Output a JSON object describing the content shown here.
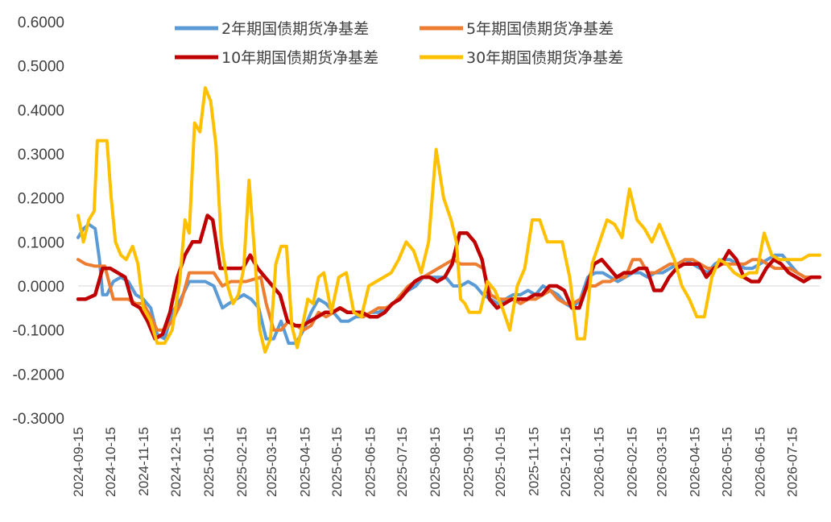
{
  "chart_data": {
    "type": "line",
    "title": "",
    "xlabel": "",
    "ylabel": "",
    "ylim": [
      -0.3,
      0.6
    ],
    "grid": false,
    "legend_position": "top",
    "y_ticks": [
      "0.6000",
      "0.5000",
      "0.4000",
      "0.3000",
      "0.2000",
      "0.1000",
      "0.0000",
      "-0.1000",
      "-0.2000",
      "-0.3000"
    ],
    "x_ticks": [
      "2024-09-15",
      "2024-10-15",
      "2024-11-15",
      "2024-12-15",
      "2025-01-15",
      "2025-02-15",
      "2025-03-15",
      "2025-04-15",
      "2025-05-15",
      "2025-06-15",
      "2025-07-15",
      "2025-08-15",
      "2025-09-15",
      "2025-10-15",
      "2025-11-15",
      "2025-12-15",
      "2026-01-15",
      "2026-02-15",
      "2026-03-15",
      "2026-04-15",
      "2026-05-15",
      "2026-06-15",
      "2026-07-15"
    ],
    "x_start": "2024-09-15",
    "x_end": "2026-08-10",
    "series": [
      {
        "name": "2年期国债期货净基差",
        "color": "#5B9BD5",
        "x": [
          "2024-09-15",
          "2024-09-20",
          "2024-09-25",
          "2024-10-01",
          "2024-10-05",
          "2024-10-08",
          "2024-10-12",
          "2024-10-18",
          "2024-10-25",
          "2024-11-01",
          "2024-11-08",
          "2024-11-15",
          "2024-11-22",
          "2024-11-28",
          "2024-12-05",
          "2024-12-12",
          "2024-12-20",
          "2024-12-28",
          "2025-01-05",
          "2025-01-12",
          "2025-01-20",
          "2025-01-28",
          "2025-02-03",
          "2025-02-10",
          "2025-02-17",
          "2025-02-24",
          "2025-03-03",
          "2025-03-10",
          "2025-03-17",
          "2025-03-24",
          "2025-03-31",
          "2025-04-07",
          "2025-04-14",
          "2025-04-21",
          "2025-04-28",
          "2025-05-05",
          "2025-05-12",
          "2025-05-19",
          "2025-05-26",
          "2025-06-02",
          "2025-06-09",
          "2025-06-16",
          "2025-06-23",
          "2025-06-30",
          "2025-07-07",
          "2025-07-14",
          "2025-07-21",
          "2025-07-28",
          "2025-08-04",
          "2025-08-11",
          "2025-08-18",
          "2025-08-25",
          "2025-09-01",
          "2025-09-08",
          "2025-09-15",
          "2025-09-22",
          "2025-09-29",
          "2025-10-06",
          "2025-10-13",
          "2025-10-20",
          "2025-10-27",
          "2025-11-03",
          "2025-11-10",
          "2025-11-17",
          "2025-11-24",
          "2025-12-01",
          "2025-12-08",
          "2025-12-15",
          "2025-12-22",
          "2025-12-29",
          "2026-01-05",
          "2026-01-12",
          "2026-01-19",
          "2026-01-26",
          "2026-02-02",
          "2026-02-09",
          "2026-02-16",
          "2026-02-23",
          "2026-03-02",
          "2026-03-09",
          "2026-03-16",
          "2026-03-23",
          "2026-03-30",
          "2026-04-06",
          "2026-04-13",
          "2026-04-20",
          "2026-04-27",
          "2026-05-04",
          "2026-05-11",
          "2026-05-18",
          "2026-05-25",
          "2026-06-01",
          "2026-06-08",
          "2026-06-15",
          "2026-06-22",
          "2026-06-29",
          "2026-07-06",
          "2026-07-13",
          "2026-07-20",
          "2026-07-27",
          "2026-08-03",
          "2026-08-10"
        ],
        "values": [
          0.11,
          0.13,
          0.14,
          0.13,
          0.06,
          -0.02,
          -0.02,
          0.01,
          0.02,
          0.01,
          -0.02,
          -0.03,
          -0.05,
          -0.11,
          -0.12,
          -0.06,
          -0.03,
          0.01,
          0.01,
          0.01,
          0.0,
          -0.05,
          -0.04,
          -0.03,
          -0.02,
          -0.03,
          -0.05,
          -0.12,
          -0.12,
          -0.08,
          -0.13,
          -0.13,
          -0.1,
          -0.06,
          -0.03,
          -0.04,
          -0.06,
          -0.08,
          -0.08,
          -0.07,
          -0.07,
          -0.06,
          -0.06,
          -0.05,
          -0.04,
          -0.02,
          -0.01,
          0.0,
          0.02,
          0.02,
          0.02,
          0.02,
          0.0,
          0.0,
          0.01,
          0.0,
          -0.02,
          -0.03,
          -0.04,
          -0.03,
          -0.02,
          -0.02,
          -0.01,
          -0.02,
          0.0,
          -0.01,
          -0.02,
          -0.04,
          -0.05,
          -0.03,
          0.02,
          0.03,
          0.03,
          0.02,
          0.01,
          0.02,
          0.03,
          0.03,
          0.02,
          0.03,
          0.03,
          0.04,
          0.05,
          0.06,
          0.05,
          0.04,
          0.03,
          0.05,
          0.06,
          0.06,
          0.05,
          0.04,
          0.04,
          0.05,
          0.06,
          0.07,
          0.07,
          0.05,
          0.03,
          0.02,
          0.02,
          0.02
        ]
      },
      {
        "name": "5年期国债期货净基差",
        "color": "#ED7D31",
        "x": [
          "2024-09-15",
          "2024-09-22",
          "2024-10-01",
          "2024-10-10",
          "2024-10-18",
          "2024-10-25",
          "2024-11-01",
          "2024-11-08",
          "2024-11-15",
          "2024-11-22",
          "2024-11-28",
          "2024-12-05",
          "2024-12-12",
          "2024-12-20",
          "2024-12-28",
          "2025-01-05",
          "2025-01-12",
          "2025-01-20",
          "2025-01-28",
          "2025-02-05",
          "2025-02-12",
          "2025-02-19",
          "2025-02-26",
          "2025-03-05",
          "2025-03-10",
          "2025-03-17",
          "2025-03-24",
          "2025-03-31",
          "2025-04-07",
          "2025-04-14",
          "2025-04-21",
          "2025-04-28",
          "2025-05-05",
          "2025-05-12",
          "2025-05-19",
          "2025-05-26",
          "2025-06-02",
          "2025-06-09",
          "2025-06-16",
          "2025-06-23",
          "2025-06-30",
          "2025-07-07",
          "2025-07-14",
          "2025-07-21",
          "2025-07-28",
          "2025-08-04",
          "2025-08-11",
          "2025-08-18",
          "2025-08-25",
          "2025-09-01",
          "2025-09-08",
          "2025-09-15",
          "2025-09-22",
          "2025-09-29",
          "2025-10-06",
          "2025-10-13",
          "2025-10-20",
          "2025-10-27",
          "2025-11-03",
          "2025-11-10",
          "2025-11-17",
          "2025-11-24",
          "2025-12-01",
          "2025-12-08",
          "2025-12-15",
          "2025-12-22",
          "2025-12-29",
          "2026-01-05",
          "2026-01-12",
          "2026-01-19",
          "2026-01-26",
          "2026-02-02",
          "2026-02-09",
          "2026-02-16",
          "2026-02-23",
          "2026-03-02",
          "2026-03-09",
          "2026-03-16",
          "2026-03-23",
          "2026-03-30",
          "2026-04-06",
          "2026-04-13",
          "2026-04-20",
          "2026-04-27",
          "2026-05-04",
          "2026-05-11",
          "2026-05-18",
          "2026-05-25",
          "2026-06-01",
          "2026-06-08",
          "2026-06-15",
          "2026-06-22",
          "2026-06-29",
          "2026-07-06",
          "2026-07-13",
          "2026-07-20",
          "2026-07-27",
          "2026-08-03",
          "2026-08-10"
        ],
        "values": [
          0.06,
          0.05,
          0.045,
          0.045,
          -0.03,
          -0.03,
          -0.03,
          -0.04,
          -0.04,
          -0.07,
          -0.1,
          -0.1,
          -0.08,
          -0.04,
          0.03,
          0.03,
          0.03,
          0.03,
          0.0,
          0.01,
          0.01,
          0.01,
          0.015,
          0.02,
          -0.04,
          -0.1,
          -0.1,
          -0.08,
          -0.09,
          -0.1,
          -0.09,
          -0.06,
          -0.07,
          -0.06,
          -0.05,
          -0.06,
          -0.06,
          -0.07,
          -0.06,
          -0.05,
          -0.05,
          -0.04,
          -0.02,
          0.0,
          0.01,
          0.02,
          0.03,
          0.04,
          0.05,
          0.06,
          0.05,
          0.05,
          0.05,
          0.04,
          -0.02,
          -0.03,
          -0.03,
          -0.03,
          -0.04,
          -0.03,
          -0.03,
          -0.02,
          -0.01,
          -0.03,
          -0.04,
          -0.04,
          -0.03,
          0.0,
          0.0,
          0.01,
          0.01,
          0.02,
          0.02,
          0.06,
          0.06,
          0.03,
          0.03,
          0.04,
          0.05,
          0.05,
          0.06,
          0.06,
          0.05,
          0.04,
          0.04,
          0.05,
          0.05,
          0.05,
          0.05,
          0.06,
          0.06,
          0.05,
          0.04,
          0.04,
          0.04,
          0.03,
          0.02,
          0.02,
          0.02
        ]
      },
      {
        "name": "10年期国债期货净基差",
        "color": "#C00000",
        "x": [
          "2024-09-15",
          "2024-09-22",
          "2024-10-01",
          "2024-10-08",
          "2024-10-15",
          "2024-10-22",
          "2024-10-29",
          "2024-11-05",
          "2024-11-12",
          "2024-11-19",
          "2024-11-26",
          "2024-12-03",
          "2024-12-10",
          "2024-12-17",
          "2024-12-24",
          "2024-12-31",
          "2025-01-07",
          "2025-01-14",
          "2025-01-19",
          "2025-01-26",
          "2025-02-02",
          "2025-02-09",
          "2025-02-16",
          "2025-02-23",
          "2025-03-02",
          "2025-03-09",
          "2025-03-16",
          "2025-03-23",
          "2025-03-30",
          "2025-04-06",
          "2025-04-13",
          "2025-04-20",
          "2025-04-27",
          "2025-05-04",
          "2025-05-11",
          "2025-05-18",
          "2025-05-25",
          "2025-06-01",
          "2025-06-08",
          "2025-06-15",
          "2025-06-22",
          "2025-06-29",
          "2025-07-06",
          "2025-07-13",
          "2025-07-20",
          "2025-07-27",
          "2025-08-03",
          "2025-08-10",
          "2025-08-17",
          "2025-08-24",
          "2025-08-31",
          "2025-09-07",
          "2025-09-14",
          "2025-09-21",
          "2025-09-28",
          "2025-10-05",
          "2025-10-12",
          "2025-10-19",
          "2025-10-26",
          "2025-11-02",
          "2025-11-09",
          "2025-11-16",
          "2025-11-23",
          "2025-11-30",
          "2025-12-07",
          "2025-12-14",
          "2025-12-21",
          "2025-12-28",
          "2026-01-04",
          "2026-01-11",
          "2026-01-18",
          "2026-01-25",
          "2026-02-01",
          "2026-02-08",
          "2026-02-15",
          "2026-02-22",
          "2026-03-01",
          "2026-03-08",
          "2026-03-15",
          "2026-03-22",
          "2026-03-29",
          "2026-04-05",
          "2026-04-12",
          "2026-04-19",
          "2026-04-26",
          "2026-05-03",
          "2026-05-10",
          "2026-05-17",
          "2026-05-24",
          "2026-05-31",
          "2026-06-07",
          "2026-06-14",
          "2026-06-21",
          "2026-06-28",
          "2026-07-05",
          "2026-07-12",
          "2026-07-19",
          "2026-07-26",
          "2026-08-02",
          "2026-08-10"
        ],
        "values": [
          -0.03,
          -0.03,
          -0.02,
          0.04,
          0.04,
          0.03,
          0.02,
          -0.04,
          -0.05,
          -0.08,
          -0.12,
          -0.11,
          -0.06,
          0.02,
          0.07,
          0.1,
          0.1,
          0.16,
          0.15,
          0.04,
          0.04,
          0.04,
          0.04,
          0.07,
          0.04,
          0.02,
          0.0,
          -0.02,
          -0.08,
          -0.09,
          -0.09,
          -0.08,
          -0.07,
          -0.06,
          -0.06,
          -0.05,
          -0.06,
          -0.06,
          -0.06,
          -0.07,
          -0.07,
          -0.06,
          -0.04,
          -0.03,
          -0.01,
          0.01,
          0.02,
          0.02,
          0.01,
          0.02,
          0.05,
          0.12,
          0.12,
          0.1,
          0.06,
          -0.03,
          -0.05,
          -0.04,
          -0.03,
          -0.03,
          -0.03,
          -0.02,
          -0.02,
          0.0,
          0.0,
          -0.01,
          -0.05,
          -0.05,
          0.0,
          0.05,
          0.06,
          0.04,
          0.02,
          0.03,
          0.03,
          0.04,
          0.04,
          -0.01,
          -0.01,
          0.02,
          0.04,
          0.05,
          0.05,
          0.05,
          0.02,
          0.04,
          0.05,
          0.08,
          0.06,
          0.02,
          0.01,
          0.01,
          0.04,
          0.06,
          0.05,
          0.03,
          0.02,
          0.01,
          0.02,
          0.02
        ]
      },
      {
        "name": "30年期国债期货净基差",
        "color": "#FFC000",
        "x": [
          "2024-09-15",
          "2024-09-20",
          "2024-09-25",
          "2024-09-30",
          "2024-10-03",
          "2024-10-08",
          "2024-10-12",
          "2024-10-16",
          "2024-10-20",
          "2024-10-25",
          "2024-10-30",
          "2024-11-05",
          "2024-11-10",
          "2024-11-15",
          "2024-11-22",
          "2024-11-28",
          "2024-12-05",
          "2024-12-12",
          "2024-12-19",
          "2024-12-24",
          "2024-12-28",
          "2025-01-02",
          "2025-01-07",
          "2025-01-12",
          "2025-01-17",
          "2025-01-22",
          "2025-01-27",
          "2025-02-02",
          "2025-02-07",
          "2025-02-12",
          "2025-02-17",
          "2025-02-22",
          "2025-02-27",
          "2025-03-04",
          "2025-03-09",
          "2025-03-14",
          "2025-03-19",
          "2025-03-24",
          "2025-03-29",
          "2025-04-03",
          "2025-04-08",
          "2025-04-13",
          "2025-04-18",
          "2025-04-23",
          "2025-04-28",
          "2025-05-03",
          "2025-05-10",
          "2025-05-17",
          "2025-05-24",
          "2025-05-31",
          "2025-06-07",
          "2025-06-14",
          "2025-06-21",
          "2025-06-28",
          "2025-07-05",
          "2025-07-12",
          "2025-07-19",
          "2025-07-26",
          "2025-08-02",
          "2025-08-09",
          "2025-08-16",
          "2025-08-23",
          "2025-08-30",
          "2025-09-04",
          "2025-09-08",
          "2025-09-12",
          "2025-09-16",
          "2025-09-20",
          "2025-09-26",
          "2025-10-03",
          "2025-10-10",
          "2025-10-17",
          "2025-10-24",
          "2025-10-31",
          "2025-11-07",
          "2025-11-14",
          "2025-11-21",
          "2025-11-28",
          "2025-12-05",
          "2025-12-12",
          "2025-12-19",
          "2025-12-26",
          "2026-01-02",
          "2026-01-09",
          "2026-01-16",
          "2026-01-23",
          "2026-01-30",
          "2026-02-06",
          "2026-02-13",
          "2026-02-20",
          "2026-02-27",
          "2026-03-06",
          "2026-03-13",
          "2026-03-20",
          "2026-03-27",
          "2026-04-03",
          "2026-04-10",
          "2026-04-17",
          "2026-04-24",
          "2026-05-01",
          "2026-05-08",
          "2026-05-15",
          "2026-05-22",
          "2026-05-29",
          "2026-06-05",
          "2026-06-12",
          "2026-06-19",
          "2026-06-26",
          "2026-07-03",
          "2026-07-10",
          "2026-07-17",
          "2026-07-24",
          "2026-07-31",
          "2026-08-05",
          "2026-08-10"
        ],
        "values": [
          0.16,
          0.1,
          0.15,
          0.17,
          0.33,
          0.33,
          0.33,
          0.2,
          0.1,
          0.07,
          0.06,
          0.09,
          0.05,
          -0.05,
          -0.08,
          -0.13,
          -0.13,
          -0.1,
          0.01,
          0.15,
          0.12,
          0.37,
          0.35,
          0.45,
          0.42,
          0.32,
          0.1,
          0.0,
          -0.04,
          -0.02,
          0.04,
          0.24,
          0.08,
          -0.1,
          -0.15,
          -0.12,
          0.05,
          0.09,
          0.09,
          -0.09,
          -0.14,
          -0.09,
          -0.03,
          -0.04,
          0.02,
          0.03,
          -0.06,
          0.02,
          0.03,
          -0.06,
          -0.07,
          0.0,
          0.01,
          0.02,
          0.03,
          0.06,
          0.1,
          0.08,
          0.03,
          0.1,
          0.31,
          0.2,
          0.15,
          0.1,
          -0.03,
          -0.04,
          -0.06,
          -0.06,
          -0.06,
          0.01,
          -0.01,
          -0.05,
          -0.1,
          0.0,
          0.04,
          0.15,
          0.15,
          0.1,
          0.1,
          0.1,
          0.02,
          -0.12,
          -0.12,
          0.05,
          0.1,
          0.15,
          0.14,
          0.11,
          0.22,
          0.15,
          0.13,
          0.1,
          0.14,
          0.1,
          0.06,
          0.0,
          -0.03,
          -0.07,
          -0.07,
          0.02,
          0.06,
          0.05,
          0.03,
          0.02,
          0.03,
          0.03,
          0.12,
          0.07,
          0.06,
          0.06,
          0.06,
          0.06,
          0.07,
          0.07,
          0.07
        ]
      }
    ]
  },
  "colors": {
    "axis": "#D9D9D9",
    "text": "#404040"
  }
}
